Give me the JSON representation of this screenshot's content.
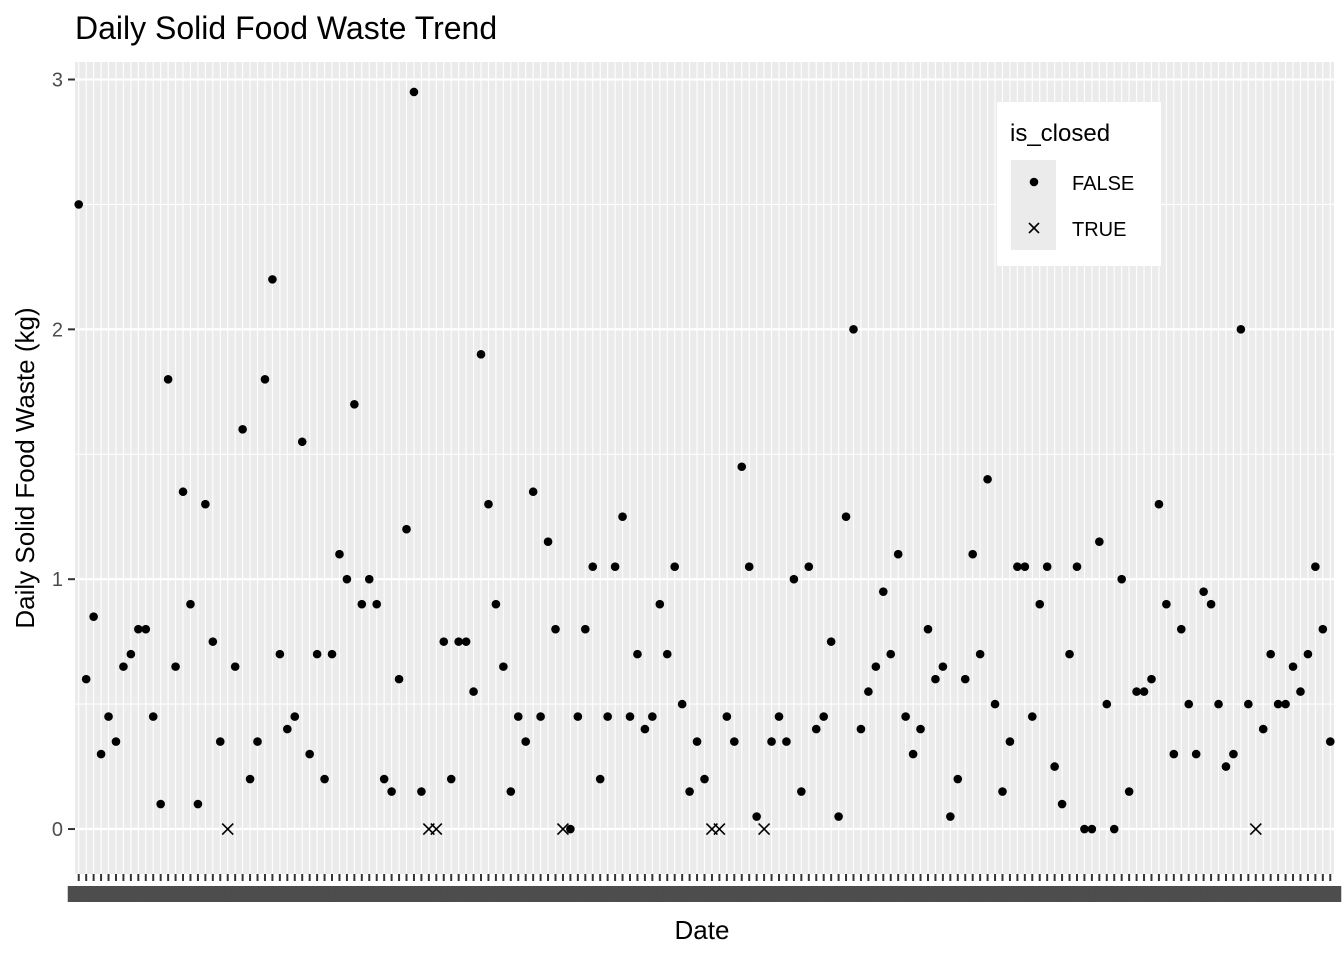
{
  "chart_data": {
    "type": "scatter",
    "title": "Daily Solid Food Waste Trend",
    "xlabel": "Date",
    "ylabel": "Daily Solid Food Waste (kg)",
    "x_axis": "one discrete category per day; tick labels overprinted and illegible",
    "x_category_count": 169,
    "ylim": [
      -0.18,
      3.07
    ],
    "yticks": [
      0,
      1,
      2,
      3
    ],
    "ytick_labels": [
      "0",
      "1",
      "2",
      "3"
    ],
    "grid": true,
    "legend": {
      "title": "is_closed",
      "placement": "top-right",
      "entries": [
        {
          "label": "FALSE",
          "shape": "dot"
        },
        {
          "label": "TRUE",
          "shape": "cross"
        }
      ]
    },
    "series": [
      {
        "name": "FALSE",
        "shape": "dot",
        "points": [
          [
            1,
            2.5
          ],
          [
            2,
            0.6
          ],
          [
            3,
            0.85
          ],
          [
            4,
            0.3
          ],
          [
            5,
            0.45
          ],
          [
            6,
            0.35
          ],
          [
            7,
            0.65
          ],
          [
            8,
            0.7
          ],
          [
            9,
            0.8
          ],
          [
            10,
            0.8
          ],
          [
            11,
            0.45
          ],
          [
            12,
            0.1
          ],
          [
            13,
            1.8
          ],
          [
            14,
            0.65
          ],
          [
            15,
            1.35
          ],
          [
            16,
            0.9
          ],
          [
            17,
            0.1
          ],
          [
            18,
            1.3
          ],
          [
            19,
            0.75
          ],
          [
            20,
            0.35
          ],
          [
            22,
            0.65
          ],
          [
            23,
            1.6
          ],
          [
            24,
            0.2
          ],
          [
            25,
            0.35
          ],
          [
            26,
            1.8
          ],
          [
            27,
            2.2
          ],
          [
            28,
            0.7
          ],
          [
            29,
            0.4
          ],
          [
            30,
            0.45
          ],
          [
            31,
            1.55
          ],
          [
            32,
            0.3
          ],
          [
            33,
            0.7
          ],
          [
            34,
            0.2
          ],
          [
            35,
            0.7
          ],
          [
            36,
            1.1
          ],
          [
            37,
            1.0
          ],
          [
            38,
            1.7
          ],
          [
            39,
            0.9
          ],
          [
            40,
            1.0
          ],
          [
            41,
            0.9
          ],
          [
            42,
            0.2
          ],
          [
            43,
            0.15
          ],
          [
            44,
            0.6
          ],
          [
            45,
            1.2
          ],
          [
            46,
            2.95
          ],
          [
            47,
            0.15
          ],
          [
            50,
            0.75
          ],
          [
            51,
            0.2
          ],
          [
            52,
            0.75
          ],
          [
            53,
            0.75
          ],
          [
            54,
            0.55
          ],
          [
            55,
            1.9
          ],
          [
            56,
            1.3
          ],
          [
            57,
            0.9
          ],
          [
            58,
            0.65
          ],
          [
            59,
            0.15
          ],
          [
            60,
            0.45
          ],
          [
            61,
            0.35
          ],
          [
            62,
            1.35
          ],
          [
            63,
            0.45
          ],
          [
            64,
            1.15
          ],
          [
            65,
            0.8
          ],
          [
            67,
            0.0
          ],
          [
            68,
            0.45
          ],
          [
            69,
            0.8
          ],
          [
            70,
            1.05
          ],
          [
            71,
            0.2
          ],
          [
            72,
            0.45
          ],
          [
            73,
            1.05
          ],
          [
            74,
            1.25
          ],
          [
            75,
            0.45
          ],
          [
            76,
            0.7
          ],
          [
            77,
            0.4
          ],
          [
            78,
            0.45
          ],
          [
            79,
            0.9
          ],
          [
            80,
            0.7
          ],
          [
            81,
            1.05
          ],
          [
            82,
            0.5
          ],
          [
            83,
            0.15
          ],
          [
            84,
            0.35
          ],
          [
            85,
            0.2
          ],
          [
            88,
            0.45
          ],
          [
            89,
            0.35
          ],
          [
            90,
            1.45
          ],
          [
            91,
            1.05
          ],
          [
            92,
            0.05
          ],
          [
            94,
            0.35
          ],
          [
            95,
            0.45
          ],
          [
            96,
            0.35
          ],
          [
            97,
            1.0
          ],
          [
            98,
            0.15
          ],
          [
            99,
            1.05
          ],
          [
            100,
            0.4
          ],
          [
            101,
            0.45
          ],
          [
            102,
            0.75
          ],
          [
            103,
            0.05
          ],
          [
            104,
            1.25
          ],
          [
            105,
            2.0
          ],
          [
            106,
            0.4
          ],
          [
            107,
            0.55
          ],
          [
            108,
            0.65
          ],
          [
            109,
            0.95
          ],
          [
            110,
            0.7
          ],
          [
            111,
            1.1
          ],
          [
            112,
            0.45
          ],
          [
            113,
            0.3
          ],
          [
            114,
            0.4
          ],
          [
            115,
            0.8
          ],
          [
            116,
            0.6
          ],
          [
            117,
            0.65
          ],
          [
            118,
            0.05
          ],
          [
            119,
            0.2
          ],
          [
            120,
            0.6
          ],
          [
            121,
            1.1
          ],
          [
            122,
            0.7
          ],
          [
            123,
            1.4
          ],
          [
            124,
            0.5
          ],
          [
            125,
            0.15
          ],
          [
            126,
            0.35
          ],
          [
            127,
            1.05
          ],
          [
            128,
            1.05
          ],
          [
            129,
            0.45
          ],
          [
            130,
            0.9
          ],
          [
            131,
            1.05
          ],
          [
            132,
            0.25
          ],
          [
            133,
            0.1
          ],
          [
            134,
            0.7
          ],
          [
            135,
            1.05
          ],
          [
            136,
            0.0
          ],
          [
            137,
            0.0
          ],
          [
            138,
            1.15
          ],
          [
            139,
            0.5
          ],
          [
            140,
            0.0
          ],
          [
            141,
            1.0
          ],
          [
            142,
            0.15
          ],
          [
            143,
            0.55
          ],
          [
            144,
            0.55
          ],
          [
            145,
            0.6
          ],
          [
            146,
            1.3
          ],
          [
            147,
            0.9
          ],
          [
            148,
            0.3
          ],
          [
            149,
            0.8
          ],
          [
            150,
            0.5
          ],
          [
            151,
            0.3
          ],
          [
            152,
            0.95
          ],
          [
            153,
            0.9
          ],
          [
            154,
            0.5
          ],
          [
            155,
            0.25
          ],
          [
            156,
            0.3
          ],
          [
            157,
            2.0
          ],
          [
            158,
            0.5
          ],
          [
            160,
            0.4
          ],
          [
            161,
            0.7
          ],
          [
            162,
            0.5
          ],
          [
            163,
            0.5
          ],
          [
            164,
            0.65
          ],
          [
            165,
            0.55
          ],
          [
            166,
            0.7
          ],
          [
            167,
            1.05
          ],
          [
            168,
            0.8
          ],
          [
            169,
            0.35
          ]
        ]
      },
      {
        "name": "TRUE",
        "shape": "cross",
        "points": [
          [
            21,
            0.0
          ],
          [
            48,
            0.0
          ],
          [
            49,
            0.0
          ],
          [
            66,
            0.0
          ],
          [
            86,
            0.0
          ],
          [
            87,
            0.0
          ],
          [
            93,
            0.0
          ],
          [
            159,
            0.0
          ]
        ]
      }
    ]
  }
}
